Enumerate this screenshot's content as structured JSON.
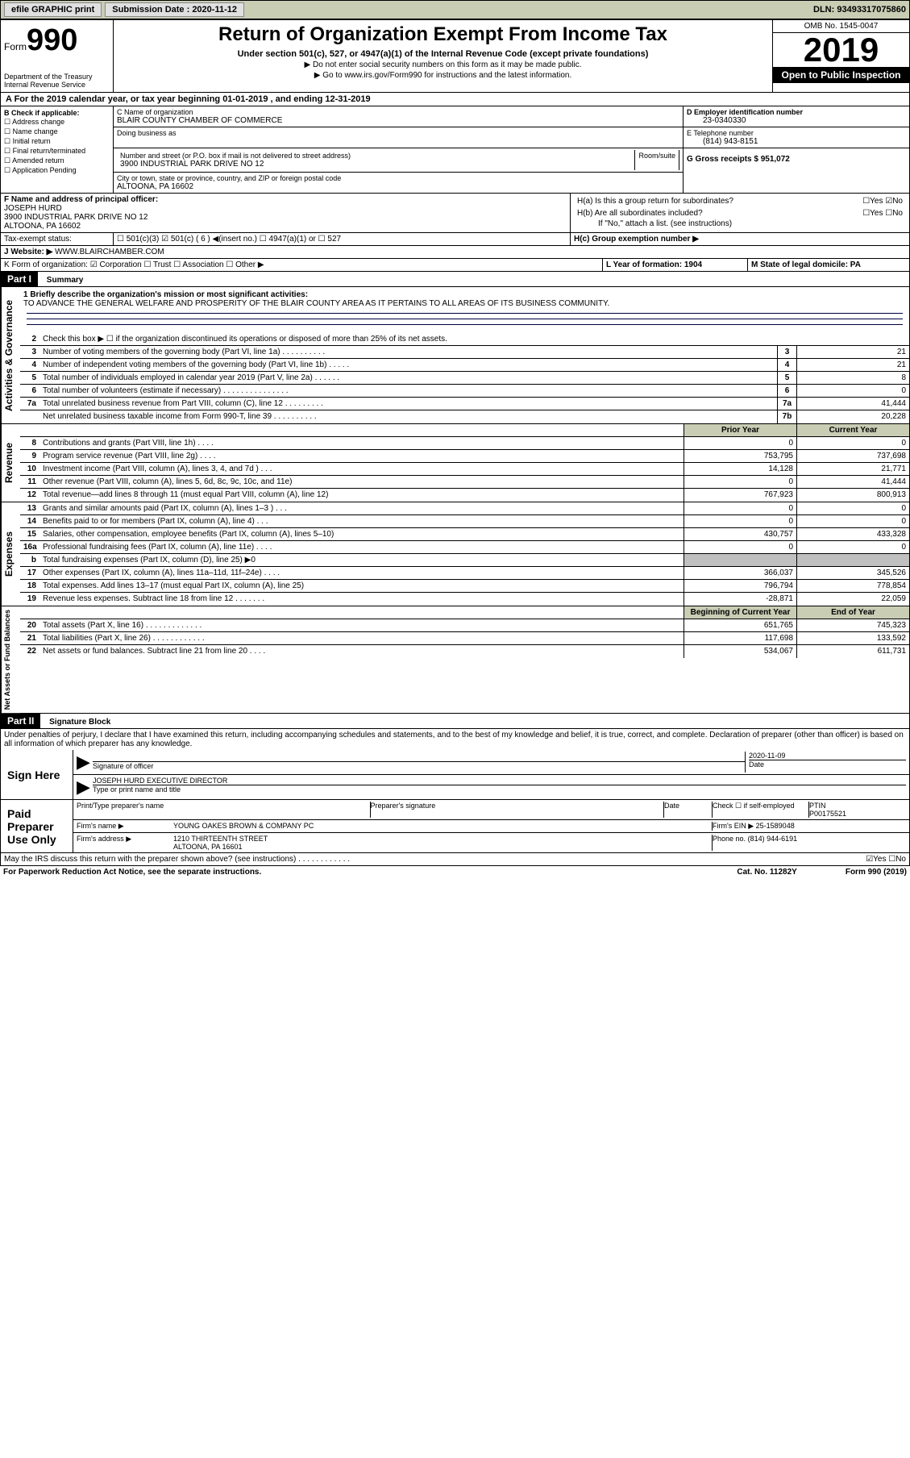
{
  "topbar": {
    "efile": "efile GRAPHIC print",
    "sub_label": "Submission Date : 2020-11-12",
    "dln": "DLN: 93493317075860"
  },
  "header": {
    "form_label": "Form",
    "form_num": "990",
    "dept": "Department of the Treasury",
    "irs": "Internal Revenue Service",
    "title": "Return of Organization Exempt From Income Tax",
    "sub": "Under section 501(c), 527, or 4947(a)(1) of the Internal Revenue Code (except private foundations)",
    "note1": "▶ Do not enter social security numbers on this form as it may be made public.",
    "note2": "▶ Go to www.irs.gov/Form990 for instructions and the latest information.",
    "omb": "OMB No. 1545-0047",
    "year": "2019",
    "inspect": "Open to Public Inspection"
  },
  "period": "A For the 2019 calendar year, or tax year beginning 01-01-2019    , and ending 12-31-2019",
  "checkboxes": {
    "hdr": "B Check if applicable:",
    "items": [
      "Address change",
      "Name change",
      "Initial return",
      "Final return/terminated",
      "Amended return",
      "Application Pending"
    ]
  },
  "org": {
    "c_label": "C Name of organization",
    "name": "BLAIR COUNTY CHAMBER OF COMMERCE",
    "dba_label": "Doing business as",
    "addr_label": "Number and street (or P.O. box if mail is not delivered to street address)",
    "room_label": "Room/suite",
    "addr": "3900 INDUSTRIAL PARK DRIVE NO 12",
    "city_label": "City or town, state or province, country, and ZIP or foreign postal code",
    "city": "ALTOONA, PA 16602"
  },
  "right": {
    "d_label": "D Employer identification number",
    "ein": "23-0340330",
    "e_label": "E Telephone number",
    "phone": "(814) 943-8151",
    "g_label": "G Gross receipts $ 951,072"
  },
  "officer": {
    "f_label": "F  Name and address of principal officer:",
    "name": "JOSEPH HURD",
    "addr": "3900 INDUSTRIAL PARK DRIVE NO 12",
    "city": "ALTOONA, PA  16602"
  },
  "h": {
    "a": "H(a)  Is this a group return for subordinates?",
    "a_ans": "☐Yes ☑No",
    "b": "H(b)  Are all subordinates included?",
    "b_ans": "☐Yes ☐No",
    "b_note": "If \"No,\" attach a list. (see instructions)",
    "c": "H(c)  Group exemption number ▶"
  },
  "tax_status": "Tax-exempt status:",
  "tax_opts": "☐ 501(c)(3)  ☑ 501(c) ( 6 ) ◀(insert no.)   ☐ 4947(a)(1) or  ☐ 527",
  "website_lbl": "J  Website: ▶",
  "website": "WWW.BLAIRCHAMBER.COM",
  "k": "K Form of organization:  ☑ Corporation  ☐ Trust  ☐ Association  ☐ Other ▶",
  "l": "L Year of formation: 1904",
  "m": "M State of legal domicile: PA",
  "part1": {
    "label": "Part I",
    "title": "Summary",
    "mission_lbl": "1  Briefly describe the organization's mission or most significant activities:",
    "mission": "TO ADVANCE THE GENERAL WELFARE AND PROSPERITY OF THE BLAIR COUNTY AREA AS IT PERTAINS TO ALL AREAS OF ITS BUSINESS COMMUNITY.",
    "l2": "Check this box ▶ ☐ if the organization discontinued its operations or disposed of more than 25% of its net assets.",
    "lines_gov": [
      {
        "n": "3",
        "d": "Number of voting members of the governing body (Part VI, line 1a)  .   .   .   .   .   .   .   .   .   .",
        "b": "3",
        "v": "21"
      },
      {
        "n": "4",
        "d": "Number of independent voting members of the governing body (Part VI, line 1b)  .   .   .   .   .",
        "b": "4",
        "v": "21"
      },
      {
        "n": "5",
        "d": "Total number of individuals employed in calendar year 2019 (Part V, line 2a)  .   .   .   .   .   .",
        "b": "5",
        "v": "8"
      },
      {
        "n": "6",
        "d": "Total number of volunteers (estimate if necessary)   .   .   .   .   .   .   .   .   .   .   .   .   .   .   .",
        "b": "6",
        "v": "0"
      },
      {
        "n": "7a",
        "d": "Total unrelated business revenue from Part VIII, column (C), line 12  .   .   .   .   .   .   .   .   .",
        "b": "7a",
        "v": "41,444"
      },
      {
        "n": "",
        "d": "Net unrelated business taxable income from Form 990-T, line 39   .   .   .   .   .   .   .   .   .   .",
        "b": "7b",
        "v": "20,228"
      }
    ],
    "col_prior": "Prior Year",
    "col_curr": "Current Year",
    "lines_rev": [
      {
        "n": "8",
        "d": "Contributions and grants (Part VIII, line 1h)   .   .   .   .",
        "p": "0",
        "c": "0"
      },
      {
        "n": "9",
        "d": "Program service revenue (Part VIII, line 2g)   .   .   .   .",
        "p": "753,795",
        "c": "737,698"
      },
      {
        "n": "10",
        "d": "Investment income (Part VIII, column (A), lines 3, 4, and 7d )   .   .   .",
        "p": "14,128",
        "c": "21,771"
      },
      {
        "n": "11",
        "d": "Other revenue (Part VIII, column (A), lines 5, 6d, 8c, 9c, 10c, and 11e)",
        "p": "0",
        "c": "41,444"
      },
      {
        "n": "12",
        "d": "Total revenue—add lines 8 through 11 (must equal Part VIII, column (A), line 12)",
        "p": "767,923",
        "c": "800,913"
      }
    ],
    "lines_exp": [
      {
        "n": "13",
        "d": "Grants and similar amounts paid (Part IX, column (A), lines 1–3 )  .   .   .",
        "p": "0",
        "c": "0"
      },
      {
        "n": "14",
        "d": "Benefits paid to or for members (Part IX, column (A), line 4)   .   .   .",
        "p": "0",
        "c": "0"
      },
      {
        "n": "15",
        "d": "Salaries, other compensation, employee benefits (Part IX, column (A), lines 5–10)",
        "p": "430,757",
        "c": "433,328"
      },
      {
        "n": "16a",
        "d": "Professional fundraising fees (Part IX, column (A), line 11e)  .   .   .   .",
        "p": "0",
        "c": "0"
      },
      {
        "n": "b",
        "d": "Total fundraising expenses (Part IX, column (D), line 25) ▶0",
        "p": "",
        "c": "",
        "shade": true
      },
      {
        "n": "17",
        "d": "Other expenses (Part IX, column (A), lines 11a–11d, 11f–24e)   .   .   .   .",
        "p": "366,037",
        "c": "345,526"
      },
      {
        "n": "18",
        "d": "Total expenses. Add lines 13–17 (must equal Part IX, column (A), line 25)",
        "p": "796,794",
        "c": "778,854"
      },
      {
        "n": "19",
        "d": "Revenue less expenses. Subtract line 18 from line 12  .   .   .   .   .   .   .",
        "p": "-28,871",
        "c": "22,059"
      }
    ],
    "col_begin": "Beginning of Current Year",
    "col_end": "End of Year",
    "lines_net": [
      {
        "n": "20",
        "d": "Total assets (Part X, line 16)  .   .   .   .   .   .   .   .   .   .   .   .   .",
        "p": "651,765",
        "c": "745,323"
      },
      {
        "n": "21",
        "d": "Total liabilities (Part X, line 26)  .   .   .   .   .   .   .   .   .   .   .   .",
        "p": "117,698",
        "c": "133,592"
      },
      {
        "n": "22",
        "d": "Net assets or fund balances. Subtract line 21 from line 20   .   .   .   .",
        "p": "534,067",
        "c": "611,731"
      }
    ],
    "side_gov": "Activities & Governance",
    "side_rev": "Revenue",
    "side_exp": "Expenses",
    "side_net": "Net Assets or Fund Balances"
  },
  "part2": {
    "label": "Part II",
    "title": "Signature Block",
    "decl": "Under penalties of perjury, I declare that I have examined this return, including accompanying schedules and statements, and to the best of my knowledge and belief, it is true, correct, and complete. Declaration of preparer (other than officer) is based on all information of which preparer has any knowledge.",
    "sign_here": "Sign Here",
    "sig_officer": "Signature of officer",
    "date_lbl": "Date",
    "date": "2020-11-09",
    "name_title": "JOSEPH HURD  EXECUTIVE DIRECTOR",
    "name_title_lbl": "Type or print name and title",
    "paid": "Paid Preparer Use Only",
    "p_name_lbl": "Print/Type preparer's name",
    "p_sig_lbl": "Preparer's signature",
    "p_date_lbl": "Date",
    "p_check": "Check ☐ if self-employed",
    "ptin_lbl": "PTIN",
    "ptin": "P00175521",
    "firm_name_lbl": "Firm's name    ▶",
    "firm_name": "YOUNG OAKES BROWN & COMPANY PC",
    "firm_ein_lbl": "Firm's EIN ▶",
    "firm_ein": "25-1589048",
    "firm_addr_lbl": "Firm's address ▶",
    "firm_addr1": "1210 THIRTEENTH STREET",
    "firm_addr2": "ALTOONA, PA  16601",
    "firm_phone_lbl": "Phone no.",
    "firm_phone": "(814) 944-6191",
    "discuss": "May the IRS discuss this return with the preparer shown above? (see instructions)   .   .   .   .   .   .   .   .   .   .   .   .",
    "discuss_ans": "☑Yes ☐No"
  },
  "footer": {
    "pra": "For Paperwork Reduction Act Notice, see the separate instructions.",
    "cat": "Cat. No. 11282Y",
    "form": "Form 990 (2019)"
  }
}
